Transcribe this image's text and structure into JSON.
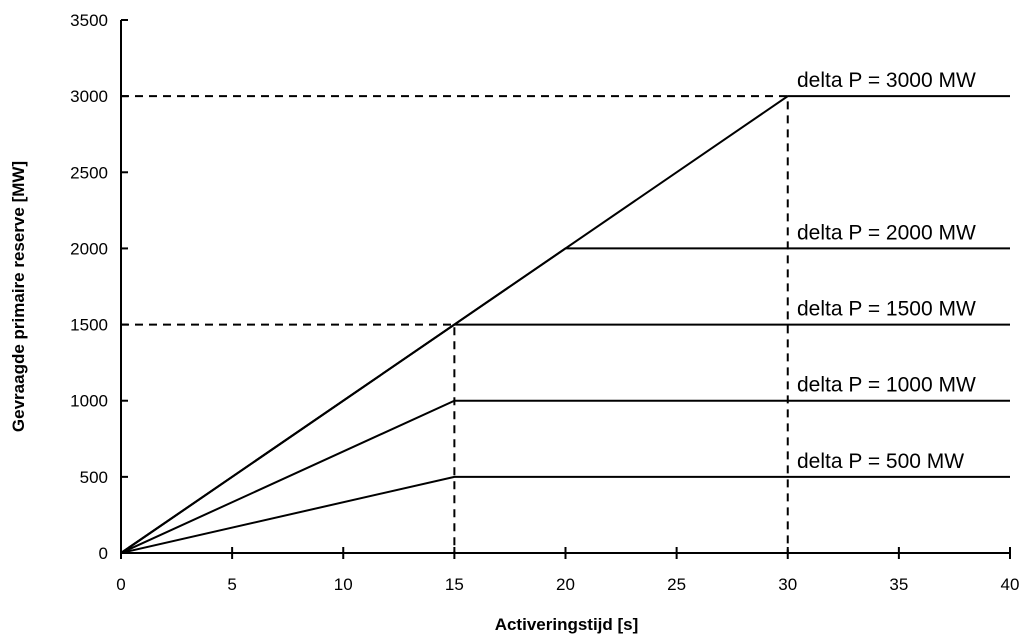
{
  "chart_data": {
    "type": "line",
    "title": "",
    "xlabel": "Activeringstijd [s]",
    "ylabel": "Gevraagde primaire reserve [MW]",
    "xlim": [
      0,
      40
    ],
    "ylim": [
      0,
      3500
    ],
    "x_ticks": [
      0,
      5,
      10,
      15,
      20,
      25,
      30,
      35,
      40
    ],
    "y_ticks": [
      0,
      500,
      1000,
      1500,
      2000,
      2500,
      3000,
      3500
    ],
    "grid": false,
    "series": [
      {
        "name": "delta P = 500 MW",
        "x": [
          0,
          15,
          40
        ],
        "y": [
          0,
          500,
          500
        ]
      },
      {
        "name": "delta P = 1000 MW",
        "x": [
          0,
          15,
          40
        ],
        "y": [
          0,
          1000,
          1000
        ]
      },
      {
        "name": "delta P = 1500 MW",
        "x": [
          0,
          15,
          40
        ],
        "y": [
          0,
          1500,
          1500
        ]
      },
      {
        "name": "delta P = 2000 MW",
        "x": [
          0,
          20,
          40
        ],
        "y": [
          0,
          2000,
          2000
        ]
      },
      {
        "name": "delta P = 3000 MW",
        "x": [
          0,
          30,
          40
        ],
        "y": [
          0,
          3000,
          3000
        ]
      }
    ],
    "reference_lines": [
      {
        "x": [
          0,
          15,
          15
        ],
        "y": [
          1500,
          1500,
          0
        ],
        "style": "dashed"
      },
      {
        "x": [
          0,
          30,
          30
        ],
        "y": [
          3000,
          3000,
          0
        ],
        "style": "dashed"
      }
    ]
  }
}
